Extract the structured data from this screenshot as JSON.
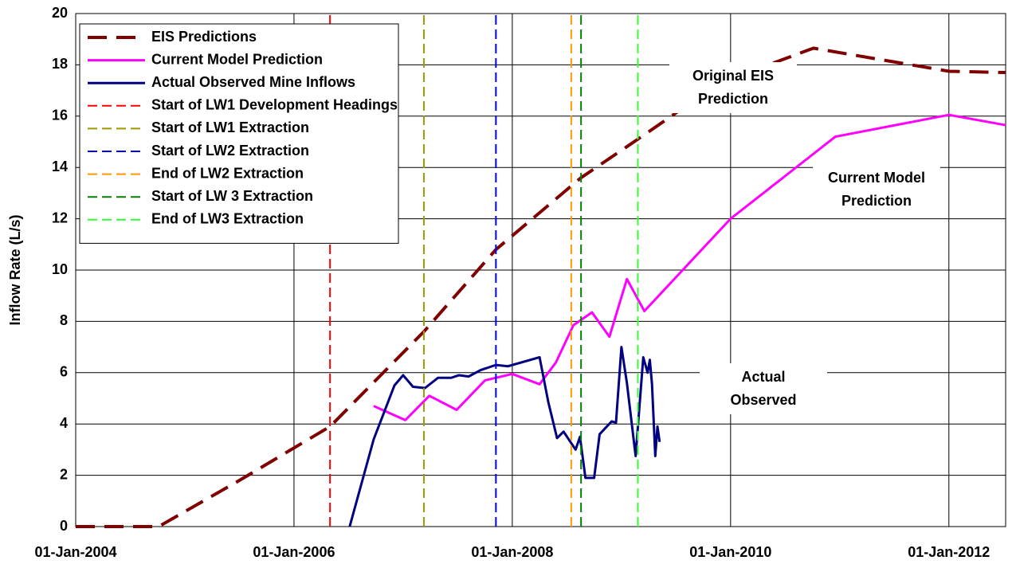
{
  "chart_data": {
    "type": "line",
    "ylabel": "Inflow Rate (L/s)",
    "xlim": [
      2004,
      2012.52
    ],
    "ylim": [
      0,
      20
    ],
    "xticks": [
      {
        "value": 2004,
        "label": "01-Jan-2004"
      },
      {
        "value": 2006,
        "label": "01-Jan-2006"
      },
      {
        "value": 2008,
        "label": "01-Jan-2008"
      },
      {
        "value": 2010,
        "label": "01-Jan-2010"
      },
      {
        "value": 2012,
        "label": "01-Jan-2012"
      }
    ],
    "yticks": [
      0,
      2,
      4,
      6,
      8,
      10,
      12,
      14,
      16,
      18,
      20
    ],
    "grid": true,
    "legend": "upper left",
    "series": [
      {
        "name": "EIS Predictions",
        "color": "#800000",
        "dash": true,
        "width": 4,
        "x": [
          2004,
          2004.76,
          2005.5,
          2006.33,
          2007.19,
          2007.85,
          2008.63,
          2009.15,
          2009.9,
          2010.76,
          2012,
          2012.52
        ],
        "values": [
          0,
          0,
          1.8,
          3.9,
          7.6,
          10.8,
          13.6,
          15.1,
          17.3,
          18.65,
          17.75,
          17.7
        ]
      },
      {
        "name": "Current Model Prediction",
        "color": "#ff00ff",
        "dash": false,
        "width": 3,
        "x": [
          2006.73,
          2007.02,
          2007.24,
          2007.49,
          2007.75,
          2008,
          2008.25,
          2008.4,
          2008.56,
          2008.73,
          2008.89,
          2009.05,
          2009.21,
          2010,
          2010.96,
          2012,
          2012.52
        ],
        "values": [
          4.7,
          4.15,
          5.1,
          4.55,
          5.7,
          5.95,
          5.55,
          6.4,
          7.85,
          8.35,
          7.4,
          9.65,
          8.4,
          12,
          15.2,
          16.05,
          15.65
        ]
      },
      {
        "name": "Actual Observed Mine Inflows",
        "color": "#000080",
        "dash": false,
        "width": 3,
        "x": [
          2006.51,
          2006.73,
          2006.92,
          2007.0,
          2007.09,
          2007.2,
          2007.32,
          2007.44,
          2007.51,
          2007.6,
          2007.71,
          2007.85,
          2007.96,
          2008.25,
          2008.33,
          2008.41,
          2008.47,
          2008.58,
          2008.62,
          2008.67,
          2008.75,
          2008.8,
          2008.91,
          2008.95,
          2009.0,
          2009.05,
          2009.13,
          2009.2,
          2009.24,
          2009.26,
          2009.28,
          2009.31,
          2009.33,
          2009.35
        ],
        "values": [
          0,
          3.4,
          5.5,
          5.9,
          5.45,
          5.4,
          5.8,
          5.8,
          5.9,
          5.85,
          6.1,
          6.3,
          6.25,
          6.6,
          4.85,
          3.45,
          3.7,
          3.0,
          3.5,
          1.9,
          1.9,
          3.6,
          4.1,
          4.05,
          7.0,
          5.6,
          2.75,
          6.6,
          6.0,
          6.5,
          5.55,
          2.75,
          3.9,
          3.3
        ]
      },
      {
        "name": "Start of LW1 Development Headings",
        "color": "#ff0000",
        "dash": true,
        "width": 2,
        "x": [
          2006.33,
          2006.33
        ],
        "values": [
          0,
          20
        ]
      },
      {
        "name": "Start of LW1 Extraction",
        "color": "#999900",
        "dash": true,
        "width": 2,
        "x": [
          2007.19,
          2007.19
        ],
        "values": [
          0,
          20
        ]
      },
      {
        "name": "Start of LW2 Extraction",
        "color": "#0000ff",
        "dash": true,
        "width": 2,
        "x": [
          2007.85,
          2007.85
        ],
        "values": [
          0,
          20
        ]
      },
      {
        "name": "End of LW2 Extraction",
        "color": "#ff9900",
        "dash": true,
        "width": 2,
        "x": [
          2008.54,
          2008.54
        ],
        "values": [
          0,
          20
        ]
      },
      {
        "name": "Start of LW 3 Extraction",
        "color": "#008000",
        "dash": true,
        "width": 2,
        "x": [
          2008.63,
          2008.63
        ],
        "values": [
          0,
          20
        ]
      },
      {
        "name": "End of LW3 Extraction",
        "color": "#33ff33",
        "dash": true,
        "width": 2,
        "x": [
          2009.15,
          2009.15
        ],
        "values": [
          0,
          20
        ]
      }
    ],
    "annotations": [
      [
        "Original EIS",
        "Prediction"
      ],
      [
        "Current Model",
        "Prediction"
      ],
      [
        "Actual",
        "Observed"
      ]
    ]
  }
}
